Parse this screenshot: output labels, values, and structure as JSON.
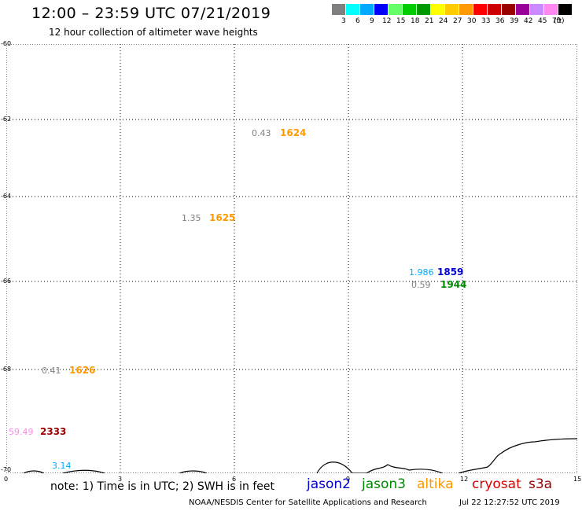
{
  "header": {
    "title": "12:00 – 23:59 UTC 07/21/2019",
    "subtitle": "12 hour collection of altimeter wave heights"
  },
  "legend": {
    "unit": "(ft)",
    "colors": [
      "#7f7f7f",
      "#00ffff",
      "#00aaff",
      "#0000ff",
      "#66ff66",
      "#00cc00",
      "#009900",
      "#ffff00",
      "#ffcc00",
      "#ff9900",
      "#ff0000",
      "#cc0000",
      "#990000",
      "#990099",
      "#cc88ff",
      "#ff88ee",
      "#000000"
    ],
    "ticks": [
      "3",
      "6",
      "9",
      "12",
      "15",
      "18",
      "21",
      "24",
      "27",
      "30",
      "33",
      "36",
      "39",
      "42",
      "45",
      "70"
    ]
  },
  "map": {
    "y_ticks": [
      "-60",
      "-62",
      "-64",
      "-66",
      "-68",
      "-70"
    ],
    "x_ticks": [
      "0",
      "3",
      "6",
      "9",
      "12",
      "15"
    ],
    "observations": [
      {
        "swh": "0.43",
        "swh_color": "#7f7f7f",
        "time": "1624",
        "time_color": "#ff9900"
      },
      {
        "swh": "1.35",
        "swh_color": "#7f7f7f",
        "time": "1625",
        "time_color": "#ff9900"
      },
      {
        "swh": "1.986",
        "swh_color": "#00aaff",
        "time": "1859",
        "time_color": "#0000cc"
      },
      {
        "swh": "0.59",
        "swh_color": "#7f7f7f",
        "time": "1944",
        "time_color": "#008800"
      },
      {
        "swh": "0.41",
        "swh_color": "#7f7f7f",
        "time": "1626",
        "time_color": "#ff9900"
      },
      {
        "swh": "59.49",
        "swh_color": "#ff88ee",
        "time": "2333",
        "time_color": "#990000"
      },
      {
        "swh": "3.14",
        "swh_color": "#00aaff",
        "time": "",
        "time_color": "#00aaff"
      }
    ]
  },
  "footer": {
    "note": "note: 1) Time is in UTC; 2) SWH is in feet",
    "satellites": [
      {
        "name": "jason2",
        "color": "#0000cc"
      },
      {
        "name": "jason3",
        "color": "#008800"
      },
      {
        "name": "altika",
        "color": "#ff9900"
      },
      {
        "name": "cryosat",
        "color": "#dd0000"
      },
      {
        "name": "s3a",
        "color": "#990000"
      }
    ],
    "credit": "NOAA/NESDIS Center for Satellite Applications and Research",
    "timestamp": "Jul 22 12:27:52 UTC 2019"
  }
}
